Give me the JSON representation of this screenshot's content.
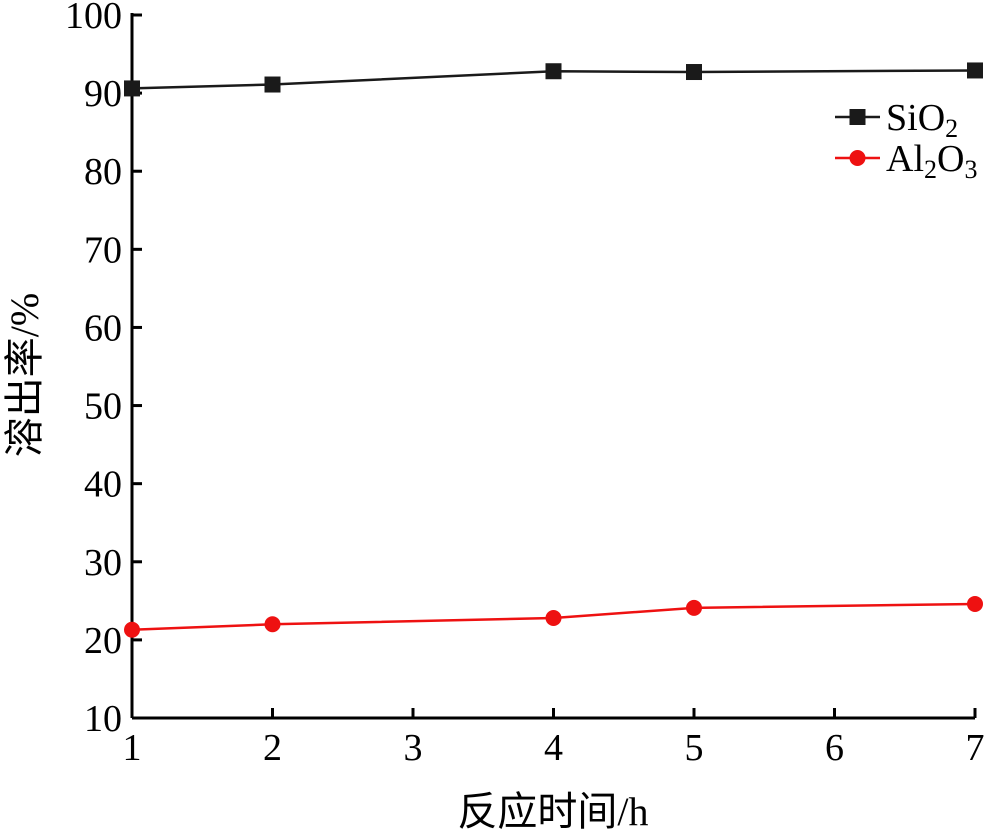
{
  "chart_data": {
    "type": "line",
    "title": "",
    "xlabel": "反应时间/h",
    "ylabel": "溶出率/%",
    "xlim": [
      1,
      7
    ],
    "ylim": [
      10,
      100
    ],
    "x_ticks": [
      1,
      2,
      3,
      4,
      5,
      6,
      7
    ],
    "y_ticks": [
      10,
      20,
      30,
      40,
      50,
      60,
      70,
      80,
      90,
      100
    ],
    "grid": false,
    "legend": "top-right",
    "series": [
      {
        "name": "SiO2",
        "name_parts": {
          "base": "SiO",
          "sub": "2",
          "tail": ""
        },
        "color": "#1a1a1a",
        "marker": "square",
        "x": [
          1,
          2,
          4,
          5,
          7
        ],
        "y": [
          90.6,
          91.1,
          92.8,
          92.7,
          92.9
        ]
      },
      {
        "name": "Al2O3",
        "name_parts": {
          "base": "Al",
          "sub": "2",
          "tail": "O",
          "sub2": "3"
        },
        "color": "#ee1111",
        "marker": "circle",
        "x": [
          1,
          2,
          4,
          5,
          7
        ],
        "y": [
          21.3,
          22.0,
          22.8,
          24.1,
          24.6
        ]
      }
    ]
  }
}
